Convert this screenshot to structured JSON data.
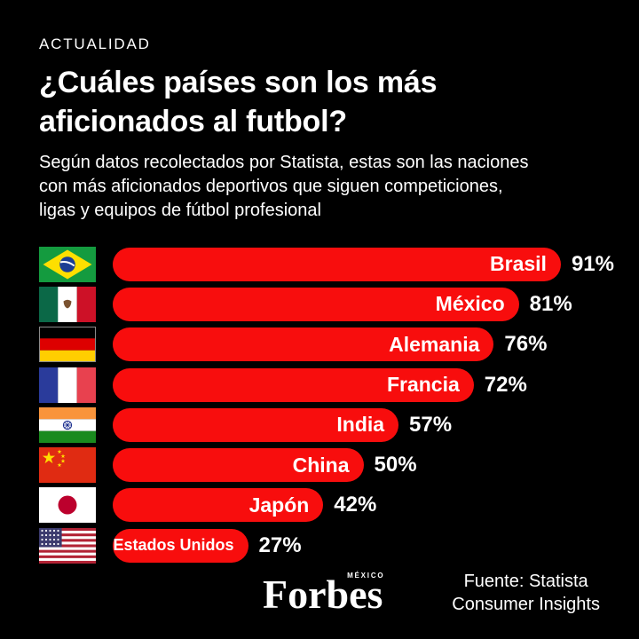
{
  "page": {
    "background": "#000000",
    "text_color": "#ffffff"
  },
  "header": {
    "kicker": "ACTUALIDAD",
    "title": "¿Cuáles países son los más\naficionados al futbol?",
    "subtitle": "Según datos recolectados por Statista, estas son las naciones\ncon más aficionados deportivos que siguen competiciones,\nligas y equipos de fútbol profesional"
  },
  "chart_data": {
    "type": "bar",
    "orientation": "horizontal",
    "title": "¿Cuáles países son los más aficionados al futbol?",
    "unit": "%",
    "xlim": [
      0,
      100
    ],
    "grid": false,
    "legend": false,
    "bar_color": "#f80d0d",
    "label_color": "#ffffff",
    "categories": [
      "Brasil",
      "México",
      "Alemania",
      "Francia",
      "India",
      "China",
      "Japón",
      "Estados Unidos"
    ],
    "values": [
      91,
      81,
      76,
      72,
      57,
      50,
      42,
      27
    ],
    "rows": [
      {
        "country": "Brasil",
        "value": 91,
        "value_label": "91%",
        "flag": "brazil-flag"
      },
      {
        "country": "México",
        "value": 81,
        "value_label": "81%",
        "flag": "mexico-flag"
      },
      {
        "country": "Alemania",
        "value": 76,
        "value_label": "76%",
        "flag": "germany-flag"
      },
      {
        "country": "Francia",
        "value": 72,
        "value_label": "72%",
        "flag": "france-flag"
      },
      {
        "country": "India",
        "value": 57,
        "value_label": "57%",
        "flag": "india-flag"
      },
      {
        "country": "China",
        "value": 50,
        "value_label": "50%",
        "flag": "china-flag"
      },
      {
        "country": "Japón",
        "value": 42,
        "value_label": "42%",
        "flag": "japan-flag"
      },
      {
        "country": "Estados Unidos",
        "value": 27,
        "value_label": "27%",
        "flag": "usa-flag"
      }
    ]
  },
  "footer": {
    "brand": "Forbes",
    "brand_region": "MÉXICO",
    "source": "Fuente: Statista\nConsumer Insights"
  }
}
